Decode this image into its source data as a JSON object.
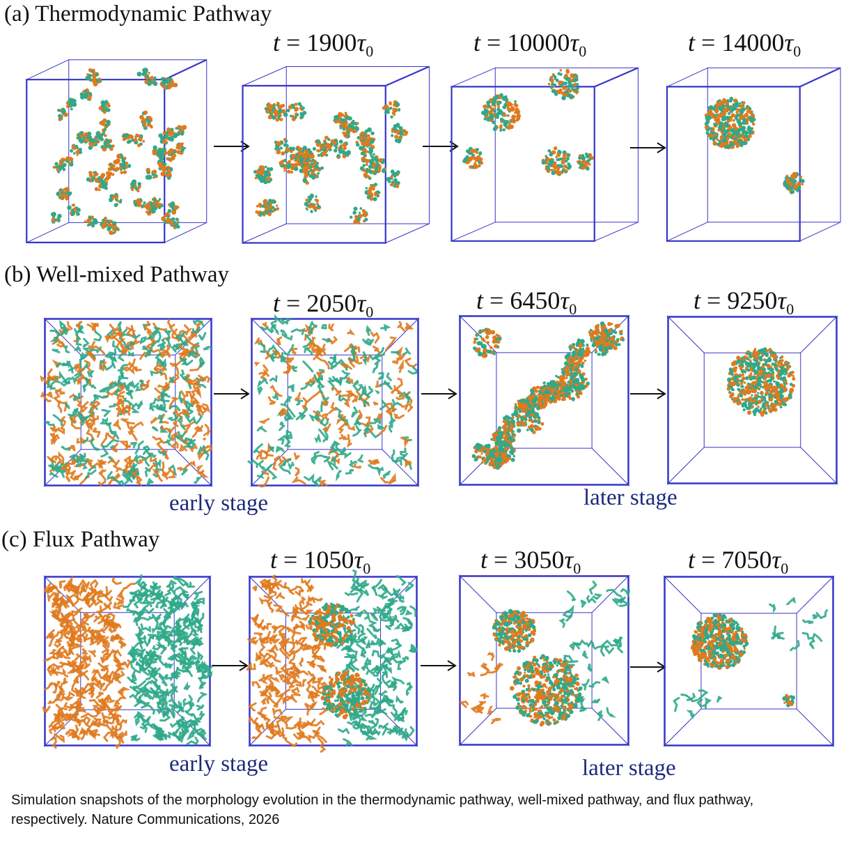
{
  "panels": [
    {
      "label": "(a)",
      "title": "Thermodynamic Pathway",
      "times": [
        "t = 1900τ0",
        "t = 10000τ0",
        "t = 14000τ0"
      ],
      "time_values": [
        "1900",
        "10000",
        "14000"
      ],
      "stages": []
    },
    {
      "label": "(b)",
      "title": "Well-mixed Pathway",
      "times": [
        "t = 2050τ0",
        "t = 6450τ0",
        "t = 9250τ0"
      ],
      "time_values": [
        "2050",
        "6450",
        "9250"
      ],
      "stages": [
        "early stage",
        "later stage"
      ]
    },
    {
      "label": "(c)",
      "title": "Flux Pathway",
      "times": [
        "t = 1050τ0",
        "t = 3050τ0",
        "t = 7050τ0"
      ],
      "time_values": [
        "1050",
        "3050",
        "7050"
      ],
      "stages": [
        "early stage",
        "later stage"
      ]
    }
  ],
  "caption": "Simulation snapshots of the morphology evolution in the thermodynamic pathway, well-mixed pathway, and flux pathway, respectively. Nature Communications, 2026",
  "colors": {
    "box_edge": "#3535c8",
    "orange_particles": "#e07a1f",
    "teal_particles": "#2fa98a",
    "stage_text": "#1c2a7a"
  }
}
